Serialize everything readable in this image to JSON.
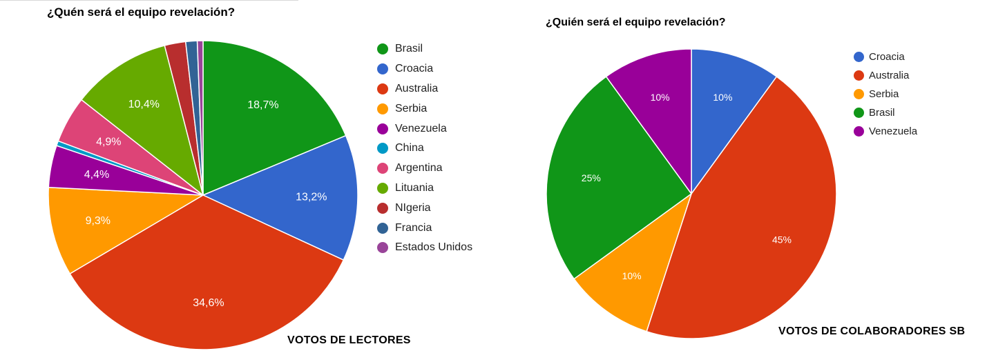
{
  "chart_data": [
    {
      "type": "pie",
      "title": "¿Quén será el equipo revelación?",
      "caption": "VOTOS DE LECTORES",
      "legend_position": "right",
      "slices": [
        {
          "label": "Brasil",
          "value": 18.7,
          "display": "18,7%",
          "color": "#109618"
        },
        {
          "label": "Croacia",
          "value": 13.2,
          "display": "13,2%",
          "color": "#3366cc"
        },
        {
          "label": "Australia",
          "value": 34.6,
          "display": "34,6%",
          "color": "#dc3912"
        },
        {
          "label": "Serbia",
          "value": 9.3,
          "display": "9,3%",
          "color": "#ff9900"
        },
        {
          "label": "Venezuela",
          "value": 4.4,
          "display": "4,4%",
          "color": "#990099"
        },
        {
          "label": "China",
          "value": 0.5,
          "display": "",
          "color": "#0099c6"
        },
        {
          "label": "Argentina",
          "value": 4.9,
          "display": "4,9%",
          "color": "#dd4477"
        },
        {
          "label": "Lituania",
          "value": 10.4,
          "display": "10,4%",
          "color": "#66aa00"
        },
        {
          "label": "NIgeria",
          "value": 2.2,
          "display": "",
          "color": "#b82e2e"
        },
        {
          "label": "Francia",
          "value": 1.2,
          "display": "",
          "color": "#316395"
        },
        {
          "label": "Estados Unidos",
          "value": 0.6,
          "display": "",
          "color": "#994499"
        }
      ]
    },
    {
      "type": "pie",
      "title": "¿Quién será el equipo revelación?",
      "caption": "VOTOS DE COLABORADORES SB",
      "legend_position": "right",
      "slices": [
        {
          "label": "Croacia",
          "value": 10,
          "display": "10%",
          "color": "#3366cc"
        },
        {
          "label": "Australia",
          "value": 45,
          "display": "45%",
          "color": "#dc3912"
        },
        {
          "label": "Serbia",
          "value": 10,
          "display": "10%",
          "color": "#ff9900"
        },
        {
          "label": "Brasil",
          "value": 25,
          "display": "25%",
          "color": "#109618"
        },
        {
          "label": "Venezuela",
          "value": 10,
          "display": "10%",
          "color": "#990099"
        }
      ]
    }
  ]
}
